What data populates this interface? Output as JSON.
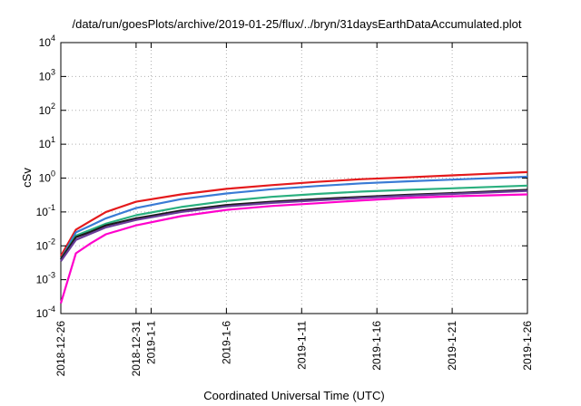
{
  "chart_data": {
    "type": "line",
    "title": "/data/run/goesPlots/archive/2019-01-25/flux/../bryn/31daysEarthDataAccumulated.plot",
    "xlabel": "Coordinated Universal Time (UTC)",
    "ylabel": "cSv",
    "yscale": "log",
    "ylim": [
      0.0001,
      10000
    ],
    "xlim": [
      "2018-12-26",
      "2019-01-26"
    ],
    "grid": true,
    "y_ticks": [
      {
        "value": 0.0001,
        "base": "10",
        "exp": "-4"
      },
      {
        "value": 0.001,
        "base": "10",
        "exp": "-3"
      },
      {
        "value": 0.01,
        "base": "10",
        "exp": "-2"
      },
      {
        "value": 0.1,
        "base": "10",
        "exp": "-1"
      },
      {
        "value": 1,
        "base": "10",
        "exp": "0"
      },
      {
        "value": 10,
        "base": "10",
        "exp": "1"
      },
      {
        "value": 100,
        "base": "10",
        "exp": "2"
      },
      {
        "value": 1000,
        "base": "10",
        "exp": "3"
      },
      {
        "value": 10000,
        "base": "10",
        "exp": "4"
      }
    ],
    "x_ticks": [
      {
        "date": "2018-12-26",
        "label": "2018-12-26"
      },
      {
        "date": "2018-12-31",
        "label": "2018-12-31"
      },
      {
        "date": "2019-01-01",
        "label": "2019-1-1"
      },
      {
        "date": "2019-01-06",
        "label": "2019-1-6"
      },
      {
        "date": "2019-01-11",
        "label": "2019-1-11"
      },
      {
        "date": "2019-01-16",
        "label": "2019-1-16"
      },
      {
        "date": "2019-01-21",
        "label": "2019-1-21"
      },
      {
        "date": "2019-01-26",
        "label": "2019-1-26"
      }
    ],
    "series": [
      {
        "color": "#e41a1c",
        "x": [
          "2018-12-26",
          "2018-12-27",
          "2018-12-28",
          "2018-12-29",
          "2018-12-31",
          "2019-01-03",
          "2019-01-06",
          "2019-01-09",
          "2019-01-12",
          "2019-01-15",
          "2019-01-18",
          "2019-01-21",
          "2019-01-26"
        ],
        "y": [
          0.005,
          0.03,
          0.055,
          0.1,
          0.2,
          0.33,
          0.48,
          0.62,
          0.77,
          0.93,
          1.05,
          1.2,
          1.5
        ]
      },
      {
        "color": "#3a7bd5",
        "x": [
          "2018-12-26",
          "2018-12-27",
          "2018-12-28",
          "2018-12-29",
          "2018-12-31",
          "2019-01-03",
          "2019-01-06",
          "2019-01-09",
          "2019-01-12",
          "2019-01-15",
          "2019-01-18",
          "2019-01-21",
          "2019-01-26"
        ],
        "y": [
          0.004,
          0.025,
          0.04,
          0.065,
          0.13,
          0.24,
          0.35,
          0.47,
          0.58,
          0.7,
          0.8,
          0.9,
          1.1
        ]
      },
      {
        "color": "#2ab07f",
        "x": [
          "2018-12-26",
          "2018-12-27",
          "2018-12-28",
          "2018-12-29",
          "2018-12-31",
          "2019-01-03",
          "2019-01-06",
          "2019-01-09",
          "2019-01-12",
          "2019-01-15",
          "2019-01-18",
          "2019-01-21",
          "2019-01-26"
        ],
        "y": [
          0.004,
          0.02,
          0.03,
          0.045,
          0.08,
          0.14,
          0.21,
          0.28,
          0.34,
          0.4,
          0.45,
          0.5,
          0.6
        ]
      },
      {
        "color": "#1a1a1a",
        "x": [
          "2018-12-26",
          "2018-12-27",
          "2018-12-28",
          "2018-12-29",
          "2018-12-31",
          "2019-01-03",
          "2019-01-06",
          "2019-01-09",
          "2019-01-12",
          "2019-01-15",
          "2019-01-18",
          "2019-01-21",
          "2019-01-26"
        ],
        "y": [
          0.004,
          0.018,
          0.026,
          0.04,
          0.065,
          0.11,
          0.16,
          0.2,
          0.24,
          0.28,
          0.32,
          0.36,
          0.45
        ]
      },
      {
        "color": "#6a3d9a",
        "x": [
          "2018-12-26",
          "2018-12-27",
          "2018-12-28",
          "2018-12-29",
          "2018-12-31",
          "2019-01-03",
          "2019-01-06",
          "2019-01-09",
          "2019-01-12",
          "2019-01-15",
          "2019-01-18",
          "2019-01-21",
          "2019-01-26"
        ],
        "y": [
          0.0035,
          0.015,
          0.023,
          0.035,
          0.058,
          0.1,
          0.145,
          0.185,
          0.22,
          0.26,
          0.3,
          0.34,
          0.42
        ]
      },
      {
        "color": "#ff00cc",
        "x": [
          "2018-12-26",
          "2018-12-27",
          "2018-12-28",
          "2018-12-29",
          "2018-12-31",
          "2019-01-03",
          "2019-01-06",
          "2019-01-09",
          "2019-01-12",
          "2019-01-15",
          "2019-01-18",
          "2019-01-21",
          "2019-01-26"
        ],
        "y": [
          0.0002,
          0.006,
          0.012,
          0.022,
          0.04,
          0.075,
          0.115,
          0.15,
          0.18,
          0.22,
          0.26,
          0.29,
          0.33
        ]
      }
    ]
  }
}
